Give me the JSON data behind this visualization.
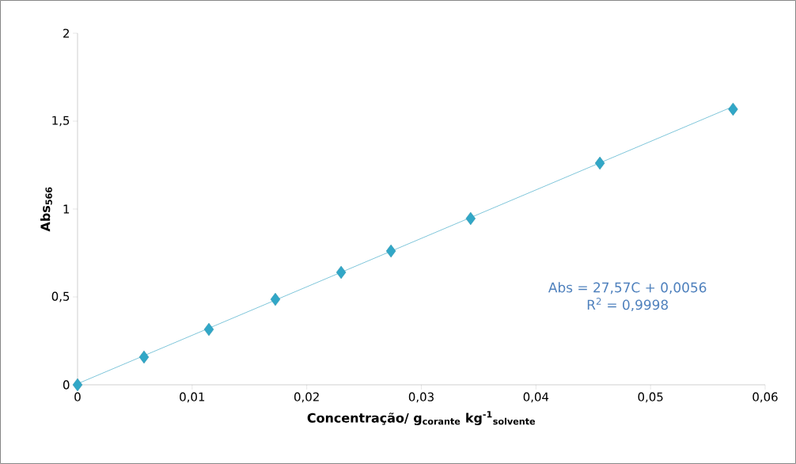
{
  "chart_data": {
    "type": "scatter",
    "xlabel": "Concentração/ g$_{corante}$ kg$^{-1}$$_{solvente}$",
    "ylabel": "Abs$_{566}$",
    "x": [
      0,
      0.0058,
      0.01146,
      0.01726,
      0.023,
      0.02735,
      0.0343,
      0.04558,
      0.0572
    ],
    "series": [
      {
        "color": "#31a7c7",
        "marker": "diamond",
        "values": [
          0,
          0.158,
          0.315,
          0.486,
          0.64,
          0.761,
          0.946,
          1.261,
          1.568
        ]
      },
      {
        "type": "line",
        "color": "#7fc6da",
        "marker": "none",
        "x": [
          0,
          0.0572
        ],
        "values": [
          0.006,
          1.583
        ]
      }
    ],
    "annotations": [
      "Abs = 27,57C + 0,0056",
      "R$^{2}$ = 0,9998"
    ],
    "xlim": [
      0,
      0.06
    ],
    "ylim": [
      0,
      2
    ],
    "xticks": [
      0,
      {
        "value": 0.01,
        "label": "0,01"
      },
      {
        "value": 0.02,
        "label": "0,02"
      },
      {
        "value": 0.03,
        "label": "0,03"
      },
      {
        "value": 0.04,
        "label": "0,04"
      },
      {
        "value": 0.05,
        "label": "0,05"
      },
      {
        "value": 0.06,
        "label": "0,06"
      }
    ],
    "yticks": [
      0,
      {
        "value": 0.5,
        "label": "0,5"
      },
      1,
      {
        "value": 1.5,
        "label": "1,5"
      },
      2
    ],
    "grid": false
  }
}
